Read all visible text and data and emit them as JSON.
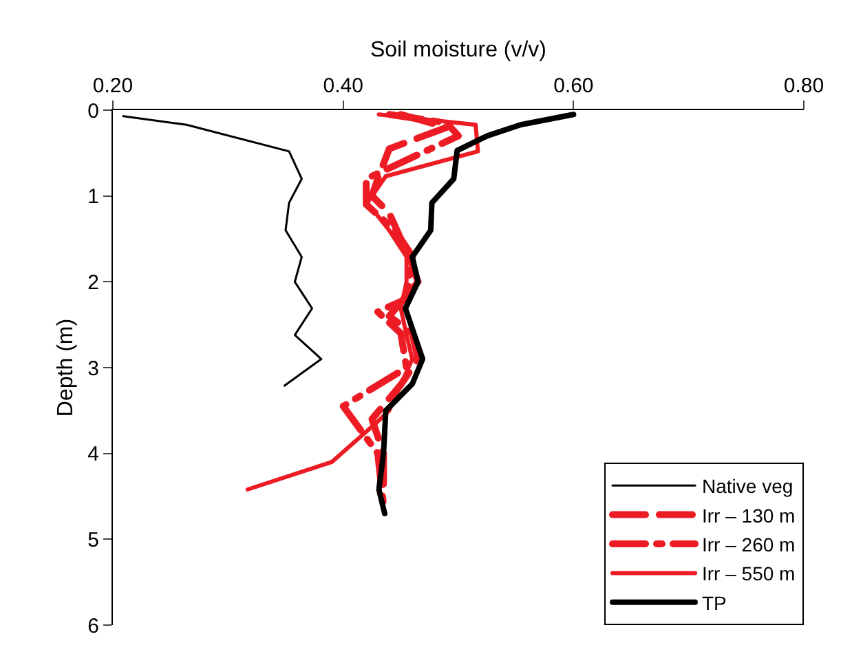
{
  "chart_data": {
    "type": "line",
    "xlabel": "Soil moisture (v/v)",
    "ylabel": "Depth (m)",
    "xlim": [
      0.2,
      0.8
    ],
    "xticks": [
      {
        "value": 0.2,
        "label": "0.20"
      },
      {
        "value": 0.4,
        "label": "0.40"
      },
      {
        "value": 0.6,
        "label": "0.60"
      },
      {
        "value": 0.8,
        "label": "0.80"
      }
    ],
    "ylim": [
      6,
      0
    ],
    "yticks": [
      0,
      1,
      2,
      3,
      4,
      5,
      6
    ],
    "legend": "bottom right",
    "marker": "none",
    "series": [
      {
        "name": "Native veg",
        "color": "#000000",
        "line_style": "solid",
        "x": [
          0.209,
          0.264,
          0.353,
          0.364,
          0.353,
          0.35,
          0.364,
          0.358,
          0.373,
          0.358,
          0.381,
          0.349
        ],
        "values": [
          0.07,
          0.17,
          0.48,
          0.8,
          1.08,
          1.4,
          1.71,
          2.0,
          2.31,
          2.62,
          2.9,
          3.21
        ]
      },
      {
        "name": "Irr – 130 m",
        "color": "#ed1c24",
        "line_style": "dashed",
        "x": [
          0.45,
          0.49,
          0.47,
          0.44,
          0.43,
          0.425,
          0.44,
          0.45,
          0.46,
          0.465,
          0.44,
          0.46,
          0.465,
          0.45,
          0.425,
          0.435,
          0.435
        ],
        "values": [
          0.05,
          0.2,
          0.3,
          0.45,
          0.8,
          1.0,
          1.2,
          1.5,
          1.8,
          2.0,
          2.4,
          2.6,
          2.9,
          3.2,
          3.6,
          4.0,
          4.5
        ]
      },
      {
        "name": "Irr – 260 m",
        "color": "#ed1c24",
        "line_style": "dotted",
        "x": [
          0.44,
          0.49,
          0.5,
          0.42,
          0.42,
          0.445,
          0.46,
          0.455,
          0.43,
          0.45,
          0.455,
          0.4,
          0.43,
          0.435
        ],
        "values": [
          0.05,
          0.15,
          0.3,
          0.8,
          1.1,
          1.4,
          1.7,
          2.2,
          2.35,
          2.6,
          3.0,
          3.45,
          4.0,
          4.6
        ]
      },
      {
        "name": "Irr – 550 m",
        "color": "#ed1c24",
        "line_style": "solid",
        "x": [
          0.431,
          0.515,
          0.517,
          0.437,
          0.421,
          0.44,
          0.455,
          0.455,
          0.45,
          0.455,
          0.46,
          0.45,
          0.44,
          0.429,
          0.39,
          0.317
        ],
        "values": [
          0.05,
          0.17,
          0.48,
          0.77,
          1.08,
          1.4,
          1.71,
          2.0,
          2.31,
          2.62,
          2.9,
          3.2,
          3.5,
          3.64,
          4.1,
          4.42
        ]
      },
      {
        "name": "TP",
        "color": "#000000",
        "line_style": "solid",
        "x": [
          0.6,
          0.554,
          0.525,
          0.499,
          0.496,
          0.477,
          0.476,
          0.46,
          0.465,
          0.454,
          0.469,
          0.46,
          0.437,
          0.435,
          0.431,
          0.436
        ],
        "values": [
          0.05,
          0.17,
          0.3,
          0.47,
          0.8,
          1.08,
          1.4,
          1.71,
          2.0,
          2.31,
          2.9,
          3.19,
          3.5,
          4.0,
          4.42,
          4.7
        ]
      }
    ]
  }
}
